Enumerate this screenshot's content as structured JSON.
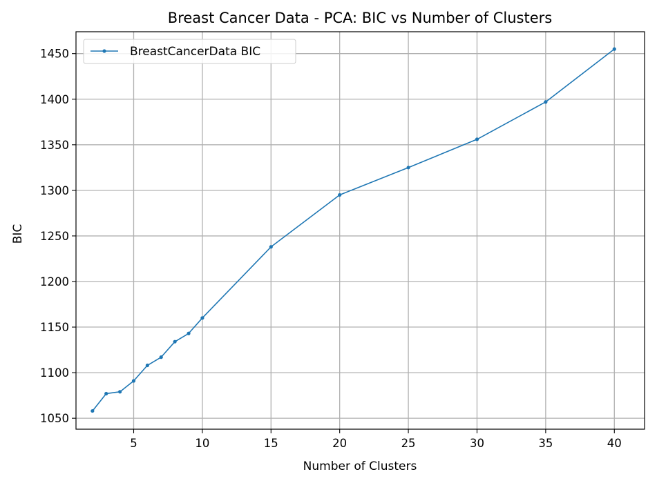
{
  "chart_data": {
    "type": "line",
    "title": "Breast Cancer Data - PCA: BIC vs Number of Clusters",
    "xlabel": "Number of Clusters",
    "ylabel": "BIC",
    "xlim": [
      0.8,
      42.2
    ],
    "ylim": [
      1038,
      1474
    ],
    "xticks": [
      5,
      10,
      15,
      20,
      25,
      30,
      35,
      40
    ],
    "yticks": [
      1050,
      1100,
      1150,
      1200,
      1250,
      1300,
      1350,
      1400,
      1450
    ],
    "grid": true,
    "legend_position": "top-left",
    "series": [
      {
        "name": "BreastCancerData BIC",
        "color": "#1f77b4",
        "marker": "circle",
        "x": [
          2,
          3,
          4,
          5,
          6,
          7,
          8,
          9,
          10,
          15,
          20,
          25,
          30,
          35,
          40
        ],
        "y": [
          1058,
          1077,
          1079,
          1091,
          1108,
          1117,
          1134,
          1143,
          1160,
          1238,
          1295,
          1325,
          1356,
          1397,
          1455
        ]
      }
    ]
  }
}
